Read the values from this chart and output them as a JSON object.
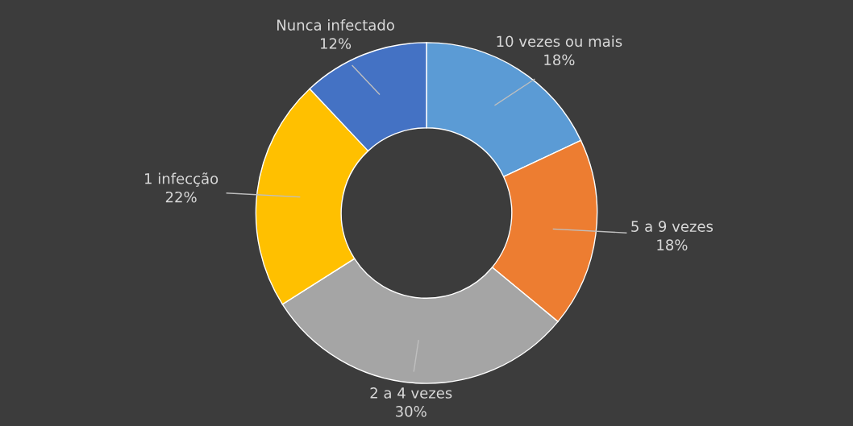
{
  "chart_data": {
    "type": "donut",
    "categories": [
      "10 vezes ou mais",
      "5 a 9 vezes",
      "2 a 4 vezes",
      "1 infecção",
      "Nunca infectado"
    ],
    "values": [
      18,
      18,
      30,
      22,
      12
    ],
    "colors": [
      "#5b9bd5",
      "#ed7d31",
      "#a5a5a5",
      "#ffc000",
      "#4472c4"
    ],
    "value_labels": [
      "18%",
      "18%",
      "30%",
      "22%",
      "12%"
    ],
    "legend": false
  }
}
